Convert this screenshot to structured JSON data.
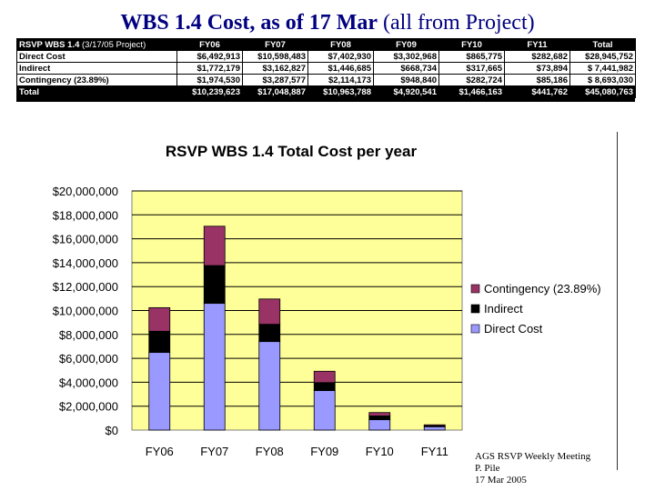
{
  "title": {
    "main": "WBS 1.4 Cost, as of 17 Mar",
    "sub": "(all from Project)"
  },
  "table": {
    "header_label": "RSVP WBS 1.4",
    "header_note": "(3/17/05 Project)",
    "columns": [
      "FY06",
      "FY07",
      "FY08",
      "FY09",
      "FY10",
      "FY11",
      "Total"
    ],
    "rows": [
      {
        "label": "Direct Cost",
        "values": [
          "$6,492,913",
          "$10,598,483",
          "$7,402,930",
          "$3,302,968",
          "$865,775",
          "$282,682",
          "$28,945,752"
        ]
      },
      {
        "label": "Indirect",
        "values": [
          "$1,772,179",
          "$3,162,827",
          "$1,446,685",
          "$668,734",
          "$317,665",
          "$73,894",
          "$ 7,441,982"
        ]
      },
      {
        "label": "Contingency (23.89%)",
        "values": [
          "$1,974,530",
          "$3,287,577",
          "$2,114,173",
          "$948,840",
          "$282,724",
          "$85,186",
          "$ 8,693,030"
        ]
      },
      {
        "label": "Total",
        "values": [
          "$10,239,623",
          "$17,048,887",
          "$10,963,788",
          "$4,920,541",
          "$1,466,163",
          "$441,762",
          "$45,080,763"
        ]
      }
    ]
  },
  "chart_data": {
    "type": "bar",
    "stacked": true,
    "title": "RSVP WBS 1.4 Total Cost per year",
    "categories": [
      "FY06",
      "FY07",
      "FY08",
      "FY09",
      "FY10",
      "FY11"
    ],
    "series": [
      {
        "name": "Direct Cost",
        "color": "#9999ff",
        "values": [
          6492913,
          10598483,
          7402930,
          3302968,
          865775,
          282682
        ]
      },
      {
        "name": "Indirect",
        "color": "#000000",
        "values": [
          1772179,
          3162827,
          1446685,
          668734,
          317665,
          73894
        ]
      },
      {
        "name": "Contingency (23.89%)",
        "color": "#993366",
        "values": [
          1974530,
          3287577,
          2114173,
          948840,
          282724,
          85186
        ]
      }
    ],
    "ylim": [
      0,
      20000000
    ],
    "yticks": [
      0,
      2000000,
      4000000,
      6000000,
      8000000,
      10000000,
      12000000,
      14000000,
      16000000,
      18000000,
      20000000
    ],
    "ytick_labels": [
      "$0",
      "$2,000,000",
      "$4,000,000",
      "$6,000,000",
      "$8,000,000",
      "$10,000,000",
      "$12,000,000",
      "$14,000,000",
      "$16,000,000",
      "$18,000,000",
      "$20,000,000"
    ],
    "grid": true,
    "legend": "right",
    "plot_background": "#ffff99"
  },
  "footer": {
    "line1": "AGS RSVP Weekly Meeting",
    "line2": "P. Pile",
    "line3": "17 Mar 2005"
  }
}
